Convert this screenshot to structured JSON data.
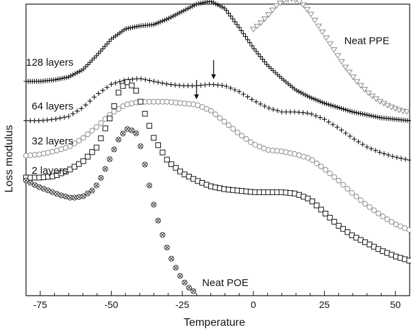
{
  "chart_data": {
    "type": "scatter",
    "title": "",
    "xlabel": "Temperature",
    "ylabel": "Loss modulus",
    "xlim": [
      -80,
      55
    ],
    "ylim": [
      0,
      10
    ],
    "xticks": [
      -75,
      -50,
      -25,
      0,
      25,
      50
    ],
    "grid": false,
    "legend": "none",
    "arrows_at_x": [
      -14,
      -14,
      -20
    ],
    "series": [
      {
        "name": "Neat PPE",
        "marker": "triangle-down",
        "color": "#8a8a8a",
        "x": [
          0,
          2,
          5,
          8,
          11,
          14,
          17,
          20,
          24,
          28,
          32,
          36,
          40,
          44,
          48,
          52,
          55
        ],
        "y": [
          9.15,
          9.3,
          9.6,
          9.95,
          10.15,
          10.2,
          10.05,
          9.7,
          9.1,
          8.5,
          7.9,
          7.4,
          7.0,
          6.7,
          6.5,
          6.35,
          6.3
        ]
      },
      {
        "name": "128 layers",
        "marker": "plus-dense",
        "color": "#111111",
        "x": [
          -80,
          -75,
          -70,
          -65,
          -60,
          -55,
          -50,
          -45,
          -40,
          -35,
          -30,
          -25,
          -20,
          -15,
          -10,
          -5,
          0,
          5,
          10,
          15,
          20,
          25,
          30,
          35,
          40,
          45,
          50,
          55
        ],
        "y": [
          7.35,
          7.35,
          7.4,
          7.5,
          7.75,
          8.25,
          8.8,
          9.15,
          9.25,
          9.3,
          9.5,
          9.75,
          10.0,
          10.1,
          9.85,
          9.2,
          8.5,
          7.9,
          7.45,
          7.05,
          6.8,
          6.6,
          6.45,
          6.3,
          6.2,
          6.1,
          6.05,
          6.0
        ]
      },
      {
        "name": "64 layers",
        "marker": "plus",
        "color": "#111111",
        "x": [
          -80,
          -75,
          -70,
          -65,
          -60,
          -55,
          -50,
          -45,
          -40,
          -35,
          -30,
          -25,
          -20,
          -15,
          -10,
          -5,
          0,
          5,
          10,
          15,
          20,
          25,
          30,
          35,
          40,
          45,
          50,
          55
        ],
        "y": [
          6.0,
          6.0,
          6.05,
          6.15,
          6.45,
          6.9,
          7.25,
          7.4,
          7.45,
          7.35,
          7.25,
          7.2,
          7.2,
          7.25,
          7.2,
          7.0,
          6.7,
          6.45,
          6.3,
          6.3,
          6.25,
          6.05,
          5.75,
          5.4,
          5.1,
          4.9,
          4.75,
          4.65
        ]
      },
      {
        "name": "32 layers",
        "marker": "circle",
        "color": "#8a8a8a",
        "x": [
          -80,
          -75,
          -70,
          -65,
          -60,
          -55,
          -50,
          -45,
          -40,
          -35,
          -30,
          -25,
          -20,
          -15,
          -10,
          -5,
          0,
          5,
          10,
          15,
          20,
          25,
          30,
          35,
          40,
          45,
          50,
          55
        ],
        "y": [
          4.8,
          4.85,
          4.95,
          5.1,
          5.4,
          5.8,
          6.25,
          6.55,
          6.65,
          6.65,
          6.65,
          6.6,
          6.55,
          6.35,
          5.95,
          5.55,
          5.2,
          5.0,
          4.95,
          4.85,
          4.7,
          4.35,
          3.95,
          3.5,
          3.1,
          2.75,
          2.45,
          2.25
        ]
      },
      {
        "name": "2 layers",
        "marker": "square",
        "color": "#111111",
        "x": [
          -80,
          -75,
          -70,
          -65,
          -60,
          -55,
          -50,
          -47,
          -44,
          -41,
          -38,
          -35,
          -30,
          -25,
          -20,
          -15,
          -10,
          -5,
          0,
          5,
          10,
          15,
          20,
          25,
          30,
          35,
          40,
          45,
          50,
          55
        ],
        "y": [
          4.05,
          4.05,
          4.1,
          4.3,
          4.6,
          5.1,
          6.2,
          7.1,
          7.35,
          7.0,
          6.2,
          5.4,
          4.6,
          4.2,
          3.95,
          3.75,
          3.65,
          3.6,
          3.55,
          3.55,
          3.55,
          3.5,
          3.3,
          2.85,
          2.4,
          2.05,
          1.8,
          1.55,
          1.35,
          1.2
        ]
      },
      {
        "name": "Neat POE",
        "marker": "x-circle",
        "color": "#333333",
        "x": [
          -80,
          -76,
          -72,
          -68,
          -64,
          -60,
          -56,
          -53,
          -50,
          -47,
          -44,
          -41,
          -39,
          -37,
          -35,
          -33,
          -31,
          -29,
          -27,
          -25,
          -23,
          -21
        ],
        "y": [
          3.95,
          3.75,
          3.6,
          3.45,
          3.35,
          3.4,
          3.65,
          4.15,
          4.8,
          5.45,
          5.75,
          5.55,
          4.9,
          3.95,
          3.1,
          2.4,
          1.8,
          1.3,
          0.9,
          0.55,
          0.3,
          0.15
        ]
      }
    ],
    "labels": [
      {
        "text": "128 layers",
        "anchor_x": -80,
        "anchor_y": 8.0
      },
      {
        "text": "64 layers",
        "anchor_x": -78,
        "anchor_y": 6.5
      },
      {
        "text": "32 layers",
        "anchor_x": -78,
        "anchor_y": 5.3
      },
      {
        "text": "2 layers",
        "anchor_x": -78,
        "anchor_y": 4.3
      },
      {
        "text": "Neat PPE",
        "anchor_x": 32,
        "anchor_y": 8.75
      },
      {
        "text": "Neat POE",
        "anchor_x": -18,
        "anchor_y": 0.45
      }
    ]
  }
}
